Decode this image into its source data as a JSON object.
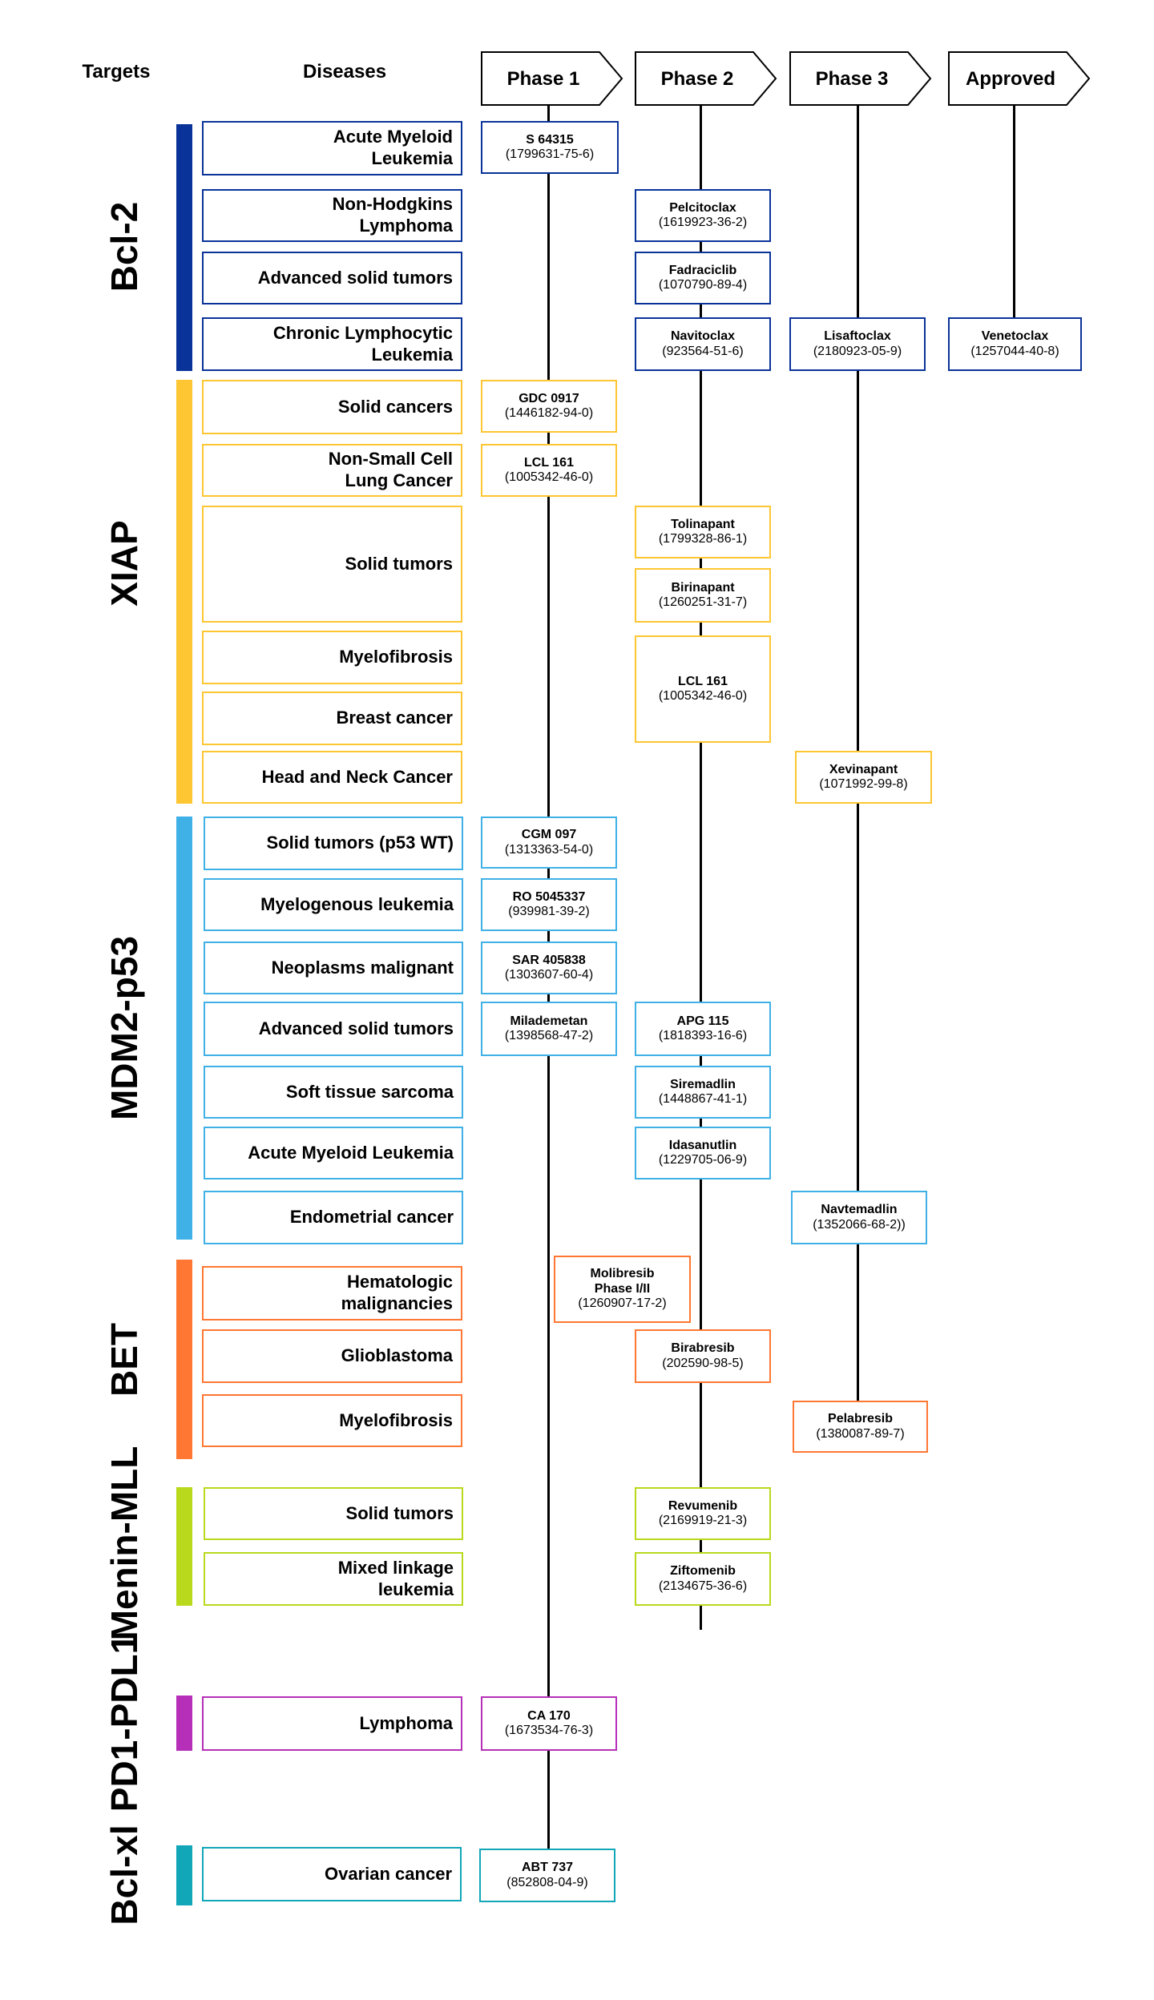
{
  "headers": {
    "targets": "Targets",
    "diseases": "Diseases"
  },
  "phases": [
    "Phase 1",
    "Phase 2",
    "Phase 3",
    "Approved"
  ],
  "groups": [
    {
      "target": "Bcl-2",
      "color": "#0a3399",
      "diseases": [
        {
          "name": "Acute Myeloid\nLeukemia"
        },
        {
          "name": "Non-Hodgkins\nLymphoma"
        },
        {
          "name": "Advanced solid tumors"
        },
        {
          "name": "Chronic Lymphocytic\nLeukemia"
        }
      ]
    },
    {
      "target": "XIAP",
      "color": "#fdc632",
      "diseases": [
        {
          "name": "Solid cancers"
        },
        {
          "name": "Non-Small Cell\nLung Cancer"
        },
        {
          "name": "Solid tumors"
        },
        {
          "name": "Myelofibrosis"
        },
        {
          "name": "Breast cancer"
        },
        {
          "name": "Head and Neck Cancer"
        }
      ]
    },
    {
      "target": "MDM2-p53",
      "color": "#40b1e6",
      "diseases": [
        {
          "name": "Solid tumors (p53 WT)"
        },
        {
          "name": "Myelogenous leukemia"
        },
        {
          "name": "Neoplasms malignant"
        },
        {
          "name": "Advanced solid tumors"
        },
        {
          "name": "Soft tissue sarcoma"
        },
        {
          "name": "Acute Myeloid Leukemia"
        },
        {
          "name": "Endometrial cancer"
        }
      ]
    },
    {
      "target": "BET",
      "color": "#ff7733",
      "diseases": [
        {
          "name": "Hematologic\nmalignancies"
        },
        {
          "name": "Glioblastoma"
        },
        {
          "name": "Myelofibrosis"
        }
      ]
    },
    {
      "target": "Menin-MLL",
      "color": "#b8d91c",
      "diseases": [
        {
          "name": "Solid tumors"
        },
        {
          "name": "Mixed linkage\nleukemia"
        }
      ]
    },
    {
      "target": "PD1-PDL1",
      "color": "#b52fb8",
      "diseases": [
        {
          "name": "Lymphoma"
        }
      ]
    },
    {
      "target": "Bcl-xl",
      "color": "#11a6b8",
      "diseases": [
        {
          "name": "Ovarian cancer"
        }
      ]
    }
  ],
  "compounds": [
    {
      "name": "S 64315",
      "cas": "(1799631-75-6)",
      "phase": "Phase 1",
      "target": "Bcl-2"
    },
    {
      "name": "Pelcitoclax",
      "cas": "(1619923-36-2)",
      "phase": "Phase 2",
      "target": "Bcl-2"
    },
    {
      "name": "Fadraciclib",
      "cas": "(1070790-89-4)",
      "phase": "Phase 2",
      "target": "Bcl-2"
    },
    {
      "name": "Navitoclax",
      "cas": "(923564-51-6)",
      "phase": "Phase 2",
      "target": "Bcl-2"
    },
    {
      "name": "Lisaftoclax",
      "cas": "(2180923-05-9)",
      "phase": "Phase 3",
      "target": "Bcl-2"
    },
    {
      "name": "Venetoclax",
      "cas": "(1257044-40-8)",
      "phase": "Approved",
      "target": "Bcl-2"
    },
    {
      "name": "GDC 0917",
      "cas": "(1446182-94-0)",
      "phase": "Phase 1",
      "target": "XIAP"
    },
    {
      "name": "LCL 161",
      "cas": "(1005342-46-0)",
      "phase": "Phase 1",
      "target": "XIAP"
    },
    {
      "name": "Tolinapant",
      "cas": "(1799328-86-1)",
      "phase": "Phase 2",
      "target": "XIAP"
    },
    {
      "name": "Birinapant",
      "cas": "(1260251-31-7)",
      "phase": "Phase 2",
      "target": "XIAP"
    },
    {
      "name": "LCL 161",
      "cas": "(1005342-46-0)",
      "phase": "Phase 2",
      "target": "XIAP"
    },
    {
      "name": "Xevinapant",
      "cas": "(1071992-99-8)",
      "phase": "Phase 3",
      "target": "XIAP"
    },
    {
      "name": "CGM 097",
      "cas": "(1313363-54-0)",
      "phase": "Phase 1",
      "target": "MDM2-p53"
    },
    {
      "name": "RO 5045337",
      "cas": "(939981-39-2)",
      "phase": "Phase 1",
      "target": "MDM2-p53"
    },
    {
      "name": "SAR 405838",
      "cas": "(1303607-60-4)",
      "phase": "Phase 1",
      "target": "MDM2-p53"
    },
    {
      "name": "Milademetan",
      "cas": "(1398568-47-2)",
      "phase": "Phase 1",
      "target": "MDM2-p53"
    },
    {
      "name": "APG 115",
      "cas": "(1818393-16-6)",
      "phase": "Phase 2",
      "target": "MDM2-p53"
    },
    {
      "name": "Siremadlin",
      "cas": "(1448867-41-1)",
      "phase": "Phase 2",
      "target": "MDM2-p53"
    },
    {
      "name": "Idasanutlin",
      "cas": "(1229705-06-9)",
      "phase": "Phase 2",
      "target": "MDM2-p53"
    },
    {
      "name": "Navtemadlin",
      "cas": "(1352066-68-2))",
      "phase": "Phase 3",
      "target": "MDM2-p53"
    },
    {
      "name": "Molibresib\nPhase I/II",
      "cas": "(1260907-17-2)",
      "phase": "Phase 1/2",
      "target": "BET"
    },
    {
      "name": "Birabresib",
      "cas": "(202590-98-5)",
      "phase": "Phase 2",
      "target": "BET"
    },
    {
      "name": "Pelabresib",
      "cas": "(1380087-89-7)",
      "phase": "Phase 3",
      "target": "BET"
    },
    {
      "name": "Revumenib",
      "cas": "(2169919-21-3)",
      "phase": "Phase 2",
      "target": "Menin-MLL"
    },
    {
      "name": "Ziftomenib",
      "cas": "(2134675-36-6)",
      "phase": "Phase 2",
      "target": "Menin-MLL"
    },
    {
      "name": "CA 170",
      "cas": "(1673534-76-3)",
      "phase": "Phase 1",
      "target": "PD1-PDL1"
    },
    {
      "name": "ABT 737",
      "cas": "(852808-04-9)",
      "phase": "Phase 1",
      "target": "Bcl-xl"
    }
  ]
}
